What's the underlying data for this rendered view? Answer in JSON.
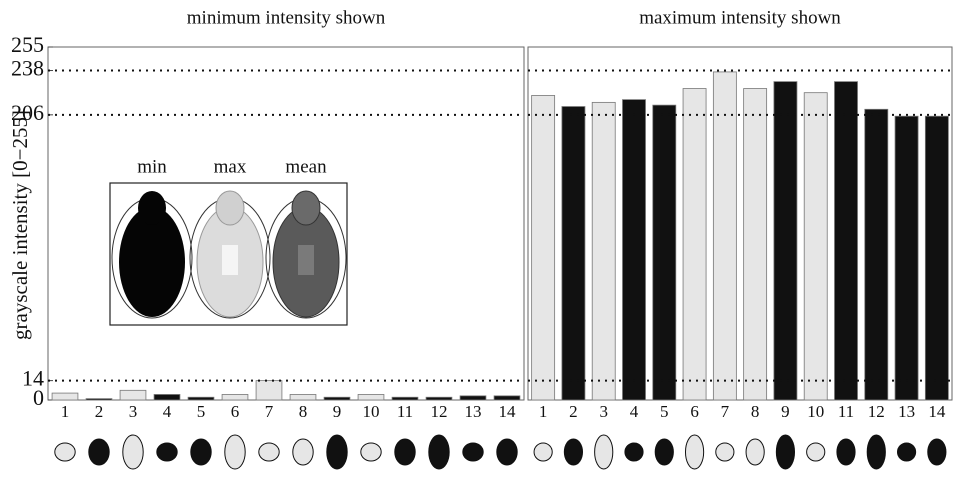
{
  "chart_data": [
    {
      "type": "bar",
      "title": "minimum intensity shown",
      "y_label": "grayscale intensity [0−255]",
      "categories": [
        "1",
        "2",
        "3",
        "4",
        "5",
        "6",
        "7",
        "8",
        "9",
        "10",
        "11",
        "12",
        "13",
        "14"
      ],
      "values": [
        5,
        1,
        7,
        4,
        2,
        4,
        14,
        4,
        2,
        4,
        2,
        2,
        3,
        3
      ],
      "colors": [
        "#e6e6e6",
        "#111111",
        "#e6e6e6",
        "#111111",
        "#111111",
        "#e6e6e6",
        "#e6e6e6",
        "#e6e6e6",
        "#111111",
        "#e6e6e6",
        "#111111",
        "#111111",
        "#111111",
        "#111111"
      ],
      "ylim": [
        0,
        255
      ],
      "yticks": [
        0,
        14,
        206,
        238,
        255
      ],
      "reference_lines": [
        14,
        206,
        238
      ],
      "inset_labels": [
        "min",
        "max",
        "mean"
      ]
    },
    {
      "type": "bar",
      "title": "maximum intensity shown",
      "categories": [
        "1",
        "2",
        "3",
        "4",
        "5",
        "6",
        "7",
        "8",
        "9",
        "10",
        "11",
        "12",
        "13",
        "14"
      ],
      "values": [
        220,
        212,
        215,
        217,
        213,
        225,
        237,
        225,
        230,
        222,
        230,
        210,
        205,
        205
      ],
      "colors": [
        "#e6e6e6",
        "#111111",
        "#e6e6e6",
        "#111111",
        "#111111",
        "#e6e6e6",
        "#e6e6e6",
        "#e6e6e6",
        "#111111",
        "#e6e6e6",
        "#111111",
        "#111111",
        "#111111",
        "#111111"
      ],
      "ylim": [
        0,
        255
      ],
      "reference_lines": [
        14,
        206,
        238
      ]
    }
  ]
}
